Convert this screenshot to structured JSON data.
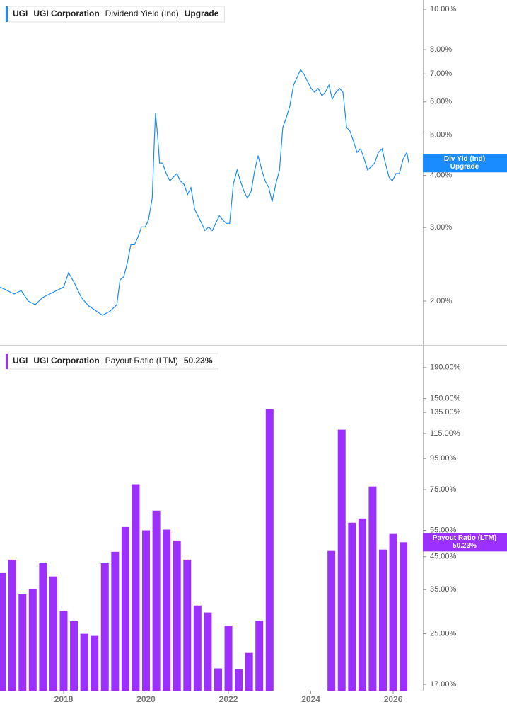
{
  "chart_data": [
    {
      "type": "line",
      "ticker": "UGI",
      "company": "UGI Corporation",
      "status": "Upgrade",
      "log_y": true,
      "x": [
        2016.46,
        2016.63,
        2016.8,
        2016.97,
        2017.14,
        2017.31,
        2017.49,
        2017.66,
        2017.83,
        2018.0,
        2018.12,
        2018.26,
        2018.43,
        2018.6,
        2018.77,
        2018.94,
        2019.12,
        2019.29,
        2019.37,
        2019.46,
        2019.55,
        2019.63,
        2019.72,
        2019.8,
        2019.89,
        2019.98,
        2020.06,
        2020.15,
        2020.2,
        2020.23,
        2020.28,
        2020.33,
        2020.4,
        2020.49,
        2020.58,
        2020.66,
        2020.75,
        2020.83,
        2020.92,
        2021.01,
        2021.09,
        2021.18,
        2021.26,
        2021.35,
        2021.43,
        2021.52,
        2021.61,
        2021.69,
        2021.78,
        2021.86,
        2021.95,
        2022.03,
        2022.12,
        2022.21,
        2022.29,
        2022.38,
        2022.46,
        2022.55,
        2022.64,
        2022.72,
        2022.81,
        2022.89,
        2022.98,
        2023.06,
        2023.15,
        2023.24,
        2023.32,
        2023.41,
        2023.49,
        2023.58,
        2023.66,
        2023.75,
        2023.84,
        2023.92,
        2024.01,
        2024.09,
        2024.18,
        2024.27,
        2024.35,
        2024.44,
        2024.52,
        2024.61,
        2024.7,
        2024.78,
        2024.87,
        2024.95,
        2025.04,
        2025.12,
        2025.21,
        2025.3,
        2025.38,
        2025.47,
        2025.55,
        2025.64,
        2025.73,
        2025.81,
        2025.9,
        2025.98,
        2026.07,
        2026.15,
        2026.24,
        2026.33,
        2026.38
      ],
      "series": [
        {
          "name": "Dividend Yield (Ind)",
          "short_name": "Div Yld (Ind)",
          "color": "#1a8cff",
          "values": [
            2.16,
            2.12,
            2.08,
            2.12,
            2.0,
            1.96,
            2.04,
            2.08,
            2.12,
            2.16,
            2.34,
            2.21,
            2.04,
            1.95,
            1.9,
            1.85,
            1.89,
            1.96,
            2.25,
            2.29,
            2.48,
            2.73,
            2.73,
            2.84,
            3.01,
            3.01,
            3.13,
            3.53,
            4.82,
            5.63,
            5.01,
            4.28,
            4.28,
            4.04,
            3.88,
            3.96,
            4.04,
            3.88,
            3.81,
            3.6,
            3.74,
            3.32,
            3.2,
            3.07,
            2.95,
            3.01,
            2.95,
            3.07,
            3.2,
            3.13,
            3.07,
            3.07,
            3.81,
            4.12,
            3.88,
            3.66,
            3.53,
            3.66,
            4.12,
            4.46,
            4.12,
            3.88,
            3.74,
            3.46,
            3.81,
            4.12,
            5.21,
            5.52,
            5.86,
            6.58,
            6.84,
            7.17,
            6.98,
            6.71,
            6.46,
            6.33,
            6.46,
            6.21,
            6.33,
            6.58,
            6.09,
            6.33,
            6.46,
            6.33,
            5.21,
            5.11,
            4.82,
            4.54,
            4.63,
            4.37,
            4.12,
            4.2,
            4.28,
            4.54,
            4.63,
            4.28,
            3.96,
            3.88,
            4.04,
            4.04,
            4.37,
            4.54,
            4.28
          ]
        }
      ],
      "xlim": [
        2016.455,
        2026.72
      ],
      "ylim": [
        1.57,
        10.52
      ],
      "yticks": [
        {
          "value": 10,
          "label": "10.00%"
        },
        {
          "value": 8,
          "label": "8.00%"
        },
        {
          "value": 7,
          "label": "7.00%"
        },
        {
          "value": 6,
          "label": "6.00%"
        },
        {
          "value": 5,
          "label": "5.00%"
        },
        {
          "value": 4,
          "label": "4.00%"
        },
        {
          "value": 3,
          "label": "3.00%"
        },
        {
          "value": 2,
          "label": "2.00%"
        }
      ]
    },
    {
      "type": "bar",
      "ticker": "UGI",
      "company": "UGI Corporation",
      "log_y": true,
      "x": [
        2016.5,
        2016.75,
        2017.0,
        2017.25,
        2017.5,
        2017.75,
        2018.0,
        2018.25,
        2018.5,
        2018.75,
        2019.0,
        2019.25,
        2019.5,
        2019.75,
        2020.0,
        2020.25,
        2020.5,
        2020.75,
        2021.0,
        2021.25,
        2021.5,
        2021.75,
        2022.0,
        2022.25,
        2022.5,
        2022.75,
        2023.0,
        2023.25,
        2023.5,
        2023.75,
        2024.0,
        2024.25,
        2024.5,
        2024.75,
        2025.0,
        2025.25,
        2025.5,
        2025.75,
        2026.0,
        2026.25
      ],
      "series": [
        {
          "name": "Payout Ratio (LTM)",
          "color": "#9b30ff",
          "last_label": "50.23%",
          "values": [
            39.7,
            44.0,
            33.8,
            35.1,
            42.8,
            38.7,
            29.8,
            27.5,
            25.0,
            24.6,
            42.8,
            46.7,
            56.4,
            78.1,
            55.0,
            63.9,
            55.3,
            50.9,
            44.0,
            31.0,
            29.4,
            19.2,
            26.6,
            19.1,
            21.6,
            27.6,
            138.4,
            null,
            null,
            null,
            null,
            null,
            47.0,
            118.3,
            58.3,
            60.2,
            76.8,
            47.5,
            53.5,
            50.23
          ]
        }
      ],
      "xlim": [
        2016.455,
        2026.72
      ],
      "ylim": [
        16.2,
        222
      ],
      "xticks": [
        2018,
        2020,
        2022,
        2024,
        2026
      ],
      "yticks": [
        {
          "value": 190,
          "label": "190.00%"
        },
        {
          "value": 150,
          "label": "150.00%"
        },
        {
          "value": 135,
          "label": "135.00%"
        },
        {
          "value": 115,
          "label": "115.00%"
        },
        {
          "value": 95,
          "label": "95.00%"
        },
        {
          "value": 75,
          "label": "75.00%"
        },
        {
          "value": 55,
          "label": "55.00%"
        },
        {
          "value": 45,
          "label": "45.00%"
        },
        {
          "value": 35,
          "label": "35.00%"
        },
        {
          "value": 25,
          "label": "25.00%"
        },
        {
          "value": 17,
          "label": "17.00%"
        }
      ]
    }
  ]
}
